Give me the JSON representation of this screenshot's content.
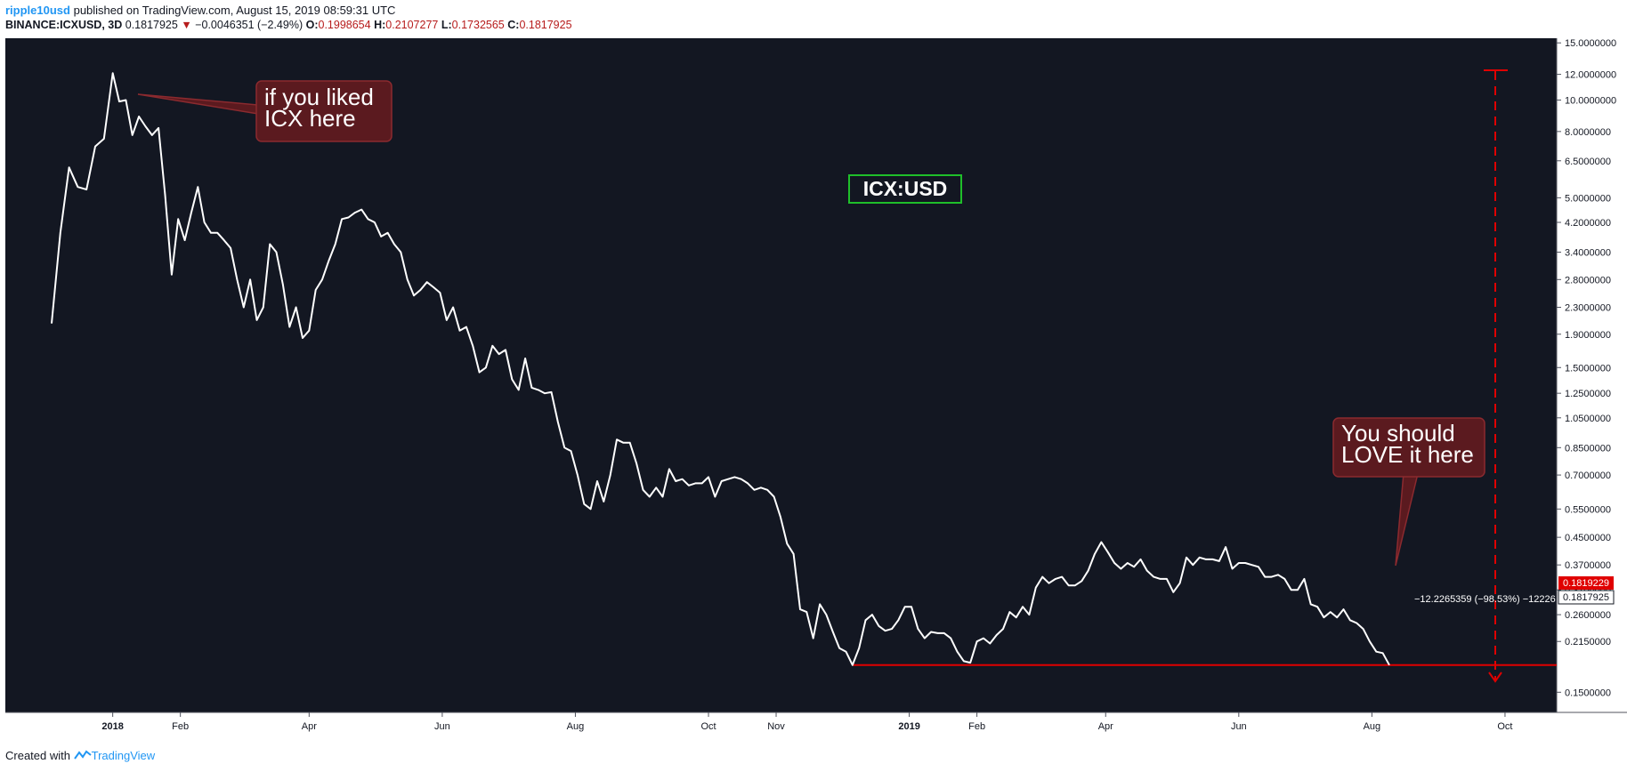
{
  "header": {
    "author": "ripple10usd",
    "published": "published on TradingView.com, August 15, 2019 08:59:31 UTC",
    "symbol": "BINANCE:ICXUSD, 3D",
    "last": "0.1817925",
    "down_arrow": "▼",
    "change": "−0.0046351 (−2.49%)",
    "o_label": "O:",
    "o_value": "0.1998654",
    "h_label": "H:",
    "h_value": "0.2107277",
    "l_label": "L:",
    "l_value": "0.1732565",
    "c_label": "C:",
    "c_value": "0.1817925"
  },
  "footer": {
    "created_with": "Created with",
    "brand": "TradingView"
  },
  "annotations": {
    "title_box": "ICX:USD",
    "callout1_line1": "if you liked",
    "callout1_line2": "ICX here",
    "callout2_line1": "You should",
    "callout2_line2": "LOVE it here",
    "measure_label": "−12.2265359 (−98.53%) −12226"
  },
  "price_labels": {
    "support": "0.1819229",
    "current": "0.1817925"
  },
  "colors": {
    "background": "#131722",
    "line": "#ffffff",
    "callout_fill": "#5b1a1f",
    "callout_border": "#8b2a2f",
    "support_line": "#e00000",
    "title_border": "#1fbf2a"
  },
  "chart_data": {
    "type": "line",
    "title": "ICX:USD",
    "x_scale": "time",
    "y_scale": "log",
    "ylim": [
      0.13,
      15.5
    ],
    "y_ticks": [
      "15.0000000",
      "12.0000000",
      "10.0000000",
      "8.0000000",
      "6.5000000",
      "5.0000000",
      "4.2000000",
      "3.4000000",
      "2.8000000",
      "2.3000000",
      "1.9000000",
      "1.5000000",
      "1.2500000",
      "1.0500000",
      "0.8500000",
      "0.7000000",
      "0.5500000",
      "0.4500000",
      "0.3700000",
      "0.3100000",
      "0.2600000",
      "0.2150000",
      "0.1500000"
    ],
    "x_ticks": [
      "2018",
      "Feb",
      "Apr",
      "Jun",
      "Aug",
      "Oct",
      "Nov",
      "2019",
      "Feb",
      "Apr",
      "Jun",
      "Aug",
      "Oct"
    ],
    "x_tick_dates": [
      "2018-01-01",
      "2018-02-01",
      "2018-04-01",
      "2018-06-01",
      "2018-08-01",
      "2018-10-01",
      "2018-11-01",
      "2019-01-01",
      "2019-02-01",
      "2019-04-01",
      "2019-06-01",
      "2019-08-01",
      "2019-10-01"
    ],
    "series": [
      {
        "values": [
          [
            "2017-12-04",
            2.05
          ],
          [
            "2017-12-08",
            3.9
          ],
          [
            "2017-12-12",
            6.2
          ],
          [
            "2017-12-16",
            5.4
          ],
          [
            "2017-12-20",
            5.3
          ],
          [
            "2017-12-24",
            7.2
          ],
          [
            "2017-12-28",
            7.6
          ],
          [
            "2018-01-01",
            12.1
          ],
          [
            "2018-01-04",
            9.9
          ],
          [
            "2018-01-07",
            10.0
          ],
          [
            "2018-01-10",
            7.8
          ],
          [
            "2018-01-13",
            8.9
          ],
          [
            "2018-01-16",
            8.3
          ],
          [
            "2018-01-19",
            7.8
          ],
          [
            "2018-01-22",
            8.2
          ],
          [
            "2018-01-25",
            5.1
          ],
          [
            "2018-01-28",
            2.9
          ],
          [
            "2018-01-31",
            4.3
          ],
          [
            "2018-02-03",
            3.7
          ],
          [
            "2018-02-06",
            4.5
          ],
          [
            "2018-02-09",
            5.4
          ],
          [
            "2018-02-12",
            4.2
          ],
          [
            "2018-02-15",
            3.9
          ],
          [
            "2018-02-18",
            3.9
          ],
          [
            "2018-02-21",
            3.7
          ],
          [
            "2018-02-24",
            3.5
          ],
          [
            "2018-02-27",
            2.8
          ],
          [
            "2018-03-02",
            2.3
          ],
          [
            "2018-03-05",
            2.8
          ],
          [
            "2018-03-08",
            2.1
          ],
          [
            "2018-03-11",
            2.3
          ],
          [
            "2018-03-14",
            3.6
          ],
          [
            "2018-03-17",
            3.4
          ],
          [
            "2018-03-20",
            2.7
          ],
          [
            "2018-03-23",
            2.0
          ],
          [
            "2018-03-26",
            2.3
          ],
          [
            "2018-03-29",
            1.85
          ],
          [
            "2018-04-01",
            1.95
          ],
          [
            "2018-04-04",
            2.6
          ],
          [
            "2018-04-07",
            2.8
          ],
          [
            "2018-04-10",
            3.2
          ],
          [
            "2018-04-13",
            3.6
          ],
          [
            "2018-04-16",
            4.3
          ],
          [
            "2018-04-19",
            4.35
          ],
          [
            "2018-04-22",
            4.5
          ],
          [
            "2018-04-25",
            4.6
          ],
          [
            "2018-04-28",
            4.3
          ],
          [
            "2018-05-01",
            4.2
          ],
          [
            "2018-05-04",
            3.8
          ],
          [
            "2018-05-07",
            3.9
          ],
          [
            "2018-05-10",
            3.6
          ],
          [
            "2018-05-13",
            3.4
          ],
          [
            "2018-05-16",
            2.8
          ],
          [
            "2018-05-19",
            2.5
          ],
          [
            "2018-05-22",
            2.6
          ],
          [
            "2018-05-25",
            2.75
          ],
          [
            "2018-05-28",
            2.65
          ],
          [
            "2018-05-31",
            2.55
          ],
          [
            "2018-06-03",
            2.1
          ],
          [
            "2018-06-06",
            2.3
          ],
          [
            "2018-06-09",
            1.95
          ],
          [
            "2018-06-12",
            2.0
          ],
          [
            "2018-06-15",
            1.75
          ],
          [
            "2018-06-18",
            1.45
          ],
          [
            "2018-06-21",
            1.5
          ],
          [
            "2018-06-24",
            1.75
          ],
          [
            "2018-06-27",
            1.65
          ],
          [
            "2018-06-30",
            1.7
          ],
          [
            "2018-07-03",
            1.38
          ],
          [
            "2018-07-06",
            1.28
          ],
          [
            "2018-07-09",
            1.6
          ],
          [
            "2018-07-12",
            1.3
          ],
          [
            "2018-07-15",
            1.28
          ],
          [
            "2018-07-18",
            1.25
          ],
          [
            "2018-07-21",
            1.26
          ],
          [
            "2018-07-24",
            1.02
          ],
          [
            "2018-07-27",
            0.85
          ],
          [
            "2018-07-30",
            0.83
          ],
          [
            "2018-08-02",
            0.7
          ],
          [
            "2018-08-05",
            0.57
          ],
          [
            "2018-08-08",
            0.55
          ],
          [
            "2018-08-11",
            0.67
          ],
          [
            "2018-08-14",
            0.58
          ],
          [
            "2018-08-17",
            0.7
          ],
          [
            "2018-08-20",
            0.9
          ],
          [
            "2018-08-23",
            0.88
          ],
          [
            "2018-08-26",
            0.88
          ],
          [
            "2018-08-29",
            0.76
          ],
          [
            "2018-09-01",
            0.63
          ],
          [
            "2018-09-04",
            0.6
          ],
          [
            "2018-09-07",
            0.64
          ],
          [
            "2018-09-10",
            0.6
          ],
          [
            "2018-09-13",
            0.73
          ],
          [
            "2018-09-16",
            0.67
          ],
          [
            "2018-09-19",
            0.68
          ],
          [
            "2018-09-22",
            0.65
          ],
          [
            "2018-09-25",
            0.66
          ],
          [
            "2018-09-28",
            0.66
          ],
          [
            "2018-10-01",
            0.69
          ],
          [
            "2018-10-04",
            0.6
          ],
          [
            "2018-10-07",
            0.67
          ],
          [
            "2018-10-10",
            0.68
          ],
          [
            "2018-10-13",
            0.69
          ],
          [
            "2018-10-16",
            0.68
          ],
          [
            "2018-10-19",
            0.66
          ],
          [
            "2018-10-22",
            0.63
          ],
          [
            "2018-10-25",
            0.64
          ],
          [
            "2018-10-28",
            0.63
          ],
          [
            "2018-10-31",
            0.6
          ],
          [
            "2018-11-03",
            0.52
          ],
          [
            "2018-11-06",
            0.43
          ],
          [
            "2018-11-09",
            0.4
          ],
          [
            "2018-11-12",
            0.27
          ],
          [
            "2018-11-15",
            0.265
          ],
          [
            "2018-11-18",
            0.22
          ],
          [
            "2018-11-21",
            0.28
          ],
          [
            "2018-11-24",
            0.26
          ],
          [
            "2018-11-27",
            0.23
          ],
          [
            "2018-11-30",
            0.205
          ],
          [
            "2018-12-03",
            0.2
          ],
          [
            "2018-12-06",
            0.1819
          ],
          [
            "2018-12-09",
            0.205
          ],
          [
            "2018-12-12",
            0.25
          ],
          [
            "2018-12-15",
            0.26
          ],
          [
            "2018-12-18",
            0.24
          ],
          [
            "2018-12-21",
            0.232
          ],
          [
            "2018-12-24",
            0.235
          ],
          [
            "2018-12-27",
            0.25
          ],
          [
            "2018-12-30",
            0.275
          ],
          [
            "2019-01-02",
            0.275
          ],
          [
            "2019-01-05",
            0.235
          ],
          [
            "2019-01-08",
            0.22
          ],
          [
            "2019-01-11",
            0.23
          ],
          [
            "2019-01-14",
            0.228
          ],
          [
            "2019-01-17",
            0.228
          ],
          [
            "2019-01-20",
            0.22
          ],
          [
            "2019-01-23",
            0.2
          ],
          [
            "2019-01-26",
            0.187
          ],
          [
            "2019-01-29",
            0.185
          ],
          [
            "2019-02-01",
            0.215
          ],
          [
            "2019-02-04",
            0.22
          ],
          [
            "2019-02-07",
            0.212
          ],
          [
            "2019-02-10",
            0.225
          ],
          [
            "2019-02-13",
            0.235
          ],
          [
            "2019-02-16",
            0.265
          ],
          [
            "2019-02-19",
            0.255
          ],
          [
            "2019-02-22",
            0.275
          ],
          [
            "2019-02-25",
            0.26
          ],
          [
            "2019-02-28",
            0.315
          ],
          [
            "2019-03-03",
            0.34
          ],
          [
            "2019-03-06",
            0.325
          ],
          [
            "2019-03-09",
            0.335
          ],
          [
            "2019-03-12",
            0.34
          ],
          [
            "2019-03-15",
            0.32
          ],
          [
            "2019-03-18",
            0.32
          ],
          [
            "2019-03-21",
            0.33
          ],
          [
            "2019-03-24",
            0.355
          ],
          [
            "2019-03-27",
            0.4
          ],
          [
            "2019-03-30",
            0.435
          ],
          [
            "2019-04-02",
            0.405
          ],
          [
            "2019-04-05",
            0.375
          ],
          [
            "2019-04-08",
            0.36
          ],
          [
            "2019-04-11",
            0.375
          ],
          [
            "2019-04-14",
            0.365
          ],
          [
            "2019-04-17",
            0.385
          ],
          [
            "2019-04-20",
            0.355
          ],
          [
            "2019-04-23",
            0.34
          ],
          [
            "2019-04-26",
            0.335
          ],
          [
            "2019-04-29",
            0.335
          ],
          [
            "2019-05-02",
            0.305
          ],
          [
            "2019-05-05",
            0.325
          ],
          [
            "2019-05-08",
            0.39
          ],
          [
            "2019-05-11",
            0.37
          ],
          [
            "2019-05-14",
            0.39
          ],
          [
            "2019-05-17",
            0.385
          ],
          [
            "2019-05-20",
            0.385
          ],
          [
            "2019-05-23",
            0.38
          ],
          [
            "2019-05-26",
            0.42
          ],
          [
            "2019-05-29",
            0.36
          ],
          [
            "2019-06-01",
            0.375
          ],
          [
            "2019-06-04",
            0.375
          ],
          [
            "2019-06-07",
            0.37
          ],
          [
            "2019-06-10",
            0.365
          ],
          [
            "2019-06-13",
            0.34
          ],
          [
            "2019-06-16",
            0.34
          ],
          [
            "2019-06-19",
            0.345
          ],
          [
            "2019-06-22",
            0.335
          ],
          [
            "2019-06-25",
            0.31
          ],
          [
            "2019-06-28",
            0.31
          ],
          [
            "2019-07-01",
            0.335
          ],
          [
            "2019-07-04",
            0.28
          ],
          [
            "2019-07-07",
            0.275
          ],
          [
            "2019-07-10",
            0.255
          ],
          [
            "2019-07-13",
            0.265
          ],
          [
            "2019-07-16",
            0.255
          ],
          [
            "2019-07-19",
            0.27
          ],
          [
            "2019-07-22",
            0.25
          ],
          [
            "2019-07-25",
            0.245
          ],
          [
            "2019-07-28",
            0.235
          ],
          [
            "2019-07-31",
            0.215
          ],
          [
            "2019-08-03",
            0.2
          ],
          [
            "2019-08-06",
            0.198
          ],
          [
            "2019-08-09",
            0.1818
          ]
        ]
      }
    ],
    "support_level": 0.1819229,
    "current_price": 0.1817925,
    "grid": false,
    "legend": "none"
  }
}
